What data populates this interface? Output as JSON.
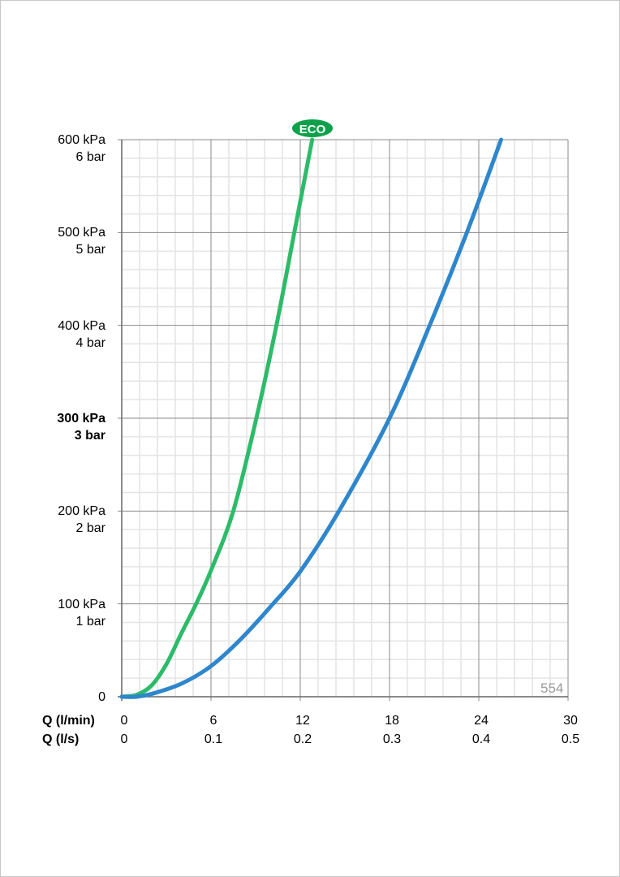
{
  "chart_data": {
    "type": "line",
    "title": "",
    "xlabel": "Q (l/min)",
    "xlabel2": "Q (l/s)",
    "ylabel": "",
    "xlim": [
      0,
      30
    ],
    "ylim": [
      0,
      600
    ],
    "grid": true,
    "x_ticks": [
      {
        "lmin": "0",
        "ls": "0"
      },
      {
        "lmin": "6",
        "ls": "0.1"
      },
      {
        "lmin": "12",
        "ls": "0.2"
      },
      {
        "lmin": "18",
        "ls": "0.3"
      },
      {
        "lmin": "24",
        "ls": "0.4"
      },
      {
        "lmin": "30",
        "ls": "0.5"
      }
    ],
    "y_ticks": [
      {
        "value": 600,
        "kpa": "600 kPa",
        "bar": "6 bar",
        "bold": false
      },
      {
        "value": 500,
        "kpa": "500 kPa",
        "bar": "5 bar",
        "bold": false
      },
      {
        "value": 400,
        "kpa": "400 kPa",
        "bar": "4 bar",
        "bold": false
      },
      {
        "value": 300,
        "kpa": "300 kPa",
        "bar": "3 bar",
        "bold": true
      },
      {
        "value": 200,
        "kpa": "200 kPa",
        "bar": "2 bar",
        "bold": false
      },
      {
        "value": 100,
        "kpa": "100 kPa",
        "bar": "1 bar",
        "bold": false
      },
      {
        "value": 0,
        "kpa": "0",
        "bar": "",
        "bold": false
      }
    ],
    "series": [
      {
        "label": "ECO",
        "color": "#2dbb6a",
        "x": [
          0,
          1,
          2,
          3,
          4,
          5,
          6,
          7.5,
          9.05,
          10.4,
          11.6,
          12.8
        ],
        "y": [
          0,
          2,
          12,
          35,
          68,
          100,
          136,
          200,
          300,
          400,
          500,
          600
        ]
      },
      {
        "color": "#2e86cc",
        "x": [
          0,
          1,
          2,
          4,
          6,
          8,
          10,
          12,
          14.6,
          18,
          20.7,
          23.2,
          25.5
        ],
        "y": [
          0,
          0,
          3,
          14,
          33,
          62,
          97,
          135,
          200,
          300,
          400,
          500,
          600
        ]
      }
    ]
  },
  "eco_badge": {
    "label": "ECO",
    "color": "#0aa14a"
  },
  "chart_code": "554"
}
